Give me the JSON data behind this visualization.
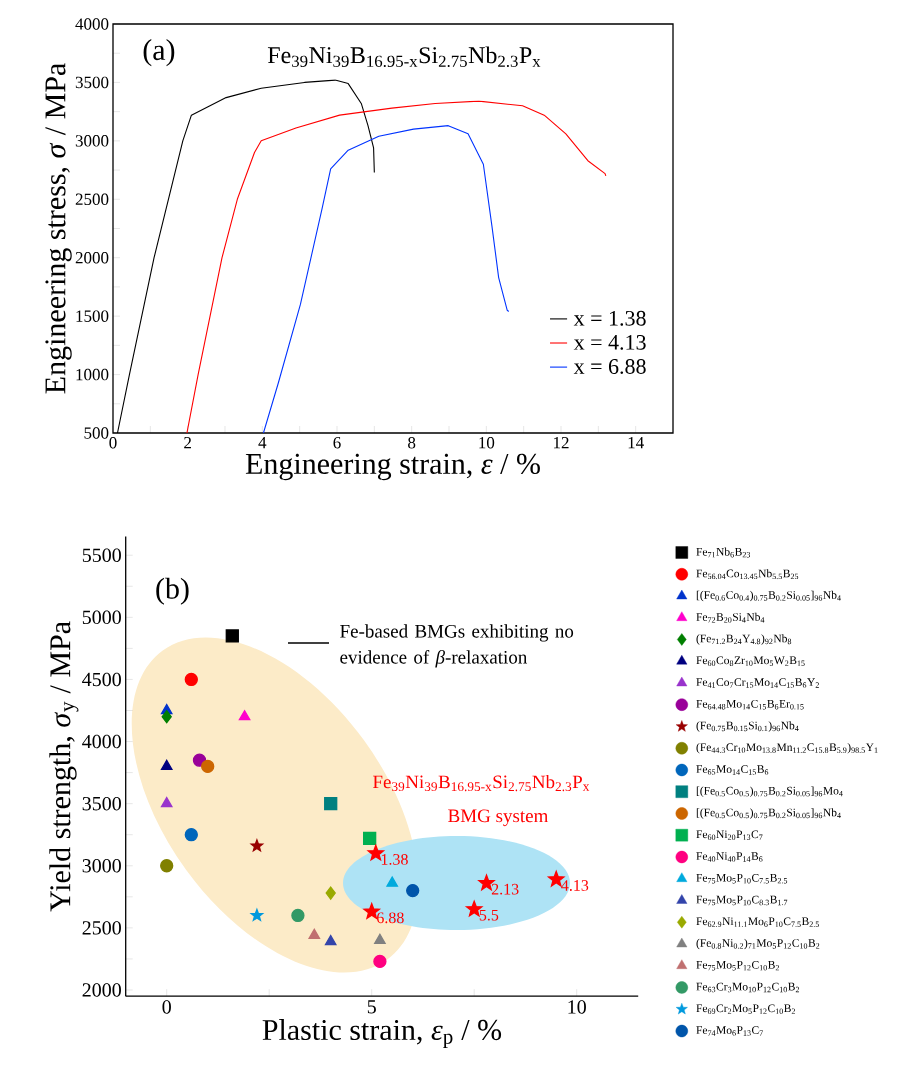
{
  "chart_data": [
    {
      "type": "line",
      "title": "Fe$_{39}$Ni$_{39}$B$_{16.95-x}$Si$_{2.75}$Nb$_{2.3}$P$_{x}$",
      "xlabel": "Engineering strain, *ε* / %",
      "ylabel": "Engineering stress, *σ* / MPa",
      "annotations": [
        "(a)"
      ],
      "xlim": [
        0,
        15
      ],
      "ylim": [
        500,
        4000
      ],
      "xticks": [
        0,
        {
          "value": 1,
          "label": null
        },
        2,
        {
          "value": 3,
          "label": null
        },
        4,
        {
          "value": 5,
          "label": null
        },
        6,
        {
          "value": 7,
          "label": null
        },
        8,
        {
          "value": 9,
          "label": null
        },
        10,
        {
          "value": 11,
          "label": null
        },
        12,
        {
          "value": 13,
          "label": null
        },
        14
      ],
      "yticks": [
        500,
        {
          "value": 750,
          "label": null
        },
        1000,
        {
          "value": 1250,
          "label": null
        },
        1500,
        {
          "value": 1750,
          "label": null
        },
        2000,
        {
          "value": 2250,
          "label": null
        },
        2500,
        {
          "value": 2750,
          "label": null
        },
        3000,
        {
          "value": 3250,
          "label": null
        },
        3500,
        {
          "value": 3750,
          "label": null
        },
        4000
      ],
      "legend": "bottom right",
      "marker": "none",
      "series": [
        {
          "name": "x = 1.38",
          "color": "#000000",
          "x": [
            0.12,
            0.44,
            1.1,
            1.87,
            2.1,
            3.03,
            3.97,
            5.13,
            5.95,
            6.3,
            6.65,
            6.83,
            6.98,
            7.0
          ],
          "values": [
            500,
            1000,
            2000,
            3000,
            3220,
            3370,
            3450,
            3500,
            3520,
            3490,
            3320,
            3130,
            2940,
            2730
          ]
        },
        {
          "name": "x = 4.13",
          "color": "#ff0000",
          "x": [
            1.98,
            2.28,
            2.92,
            3.33,
            3.79,
            3.97,
            4.9,
            6.07,
            7.47,
            8.63,
            9.8,
            10.97,
            11.55,
            12.13,
            12.72,
            13.18,
            13.2
          ],
          "values": [
            500,
            1000,
            2000,
            2500,
            2900,
            3000,
            3110,
            3220,
            3280,
            3320,
            3340,
            3300,
            3220,
            3060,
            2830,
            2720,
            2700
          ]
        },
        {
          "name": "x = 6.88",
          "color": "#0033ff",
          "x": [
            4.03,
            4.43,
            5.02,
            5.6,
            5.83,
            6.3,
            7.12,
            8.05,
            8.98,
            9.51,
            9.92,
            10.15,
            10.33,
            10.56,
            10.6
          ],
          "values": [
            500,
            930,
            1600,
            2420,
            2760,
            2920,
            3040,
            3100,
            3130,
            3060,
            2800,
            2270,
            1830,
            1550,
            1540
          ]
        }
      ]
    },
    {
      "type": "scatter",
      "xlabel": "Plastic strain, *ε*$_{p}$ / %",
      "ylabel": "Yield strength, *σ*$_{y}$ / MPa",
      "annotations": [
        "(b)",
        "Fe-based BMGs exhibiting no evidence of *β*-relaxation",
        "Fe$_{39}$Ni$_{39}$B$_{16.95-x}$Si$_{2.75}$Nb$_{2.3}$P$_{x}$",
        "BMG system",
        {
          "text": "1.38",
          "x": 5.1,
          "y": 3100
        },
        {
          "text": "2.13",
          "x": 7.8,
          "y": 2860
        },
        {
          "text": "4.13",
          "x": 9.5,
          "y": 2890
        },
        {
          "text": "5.5",
          "x": 7.5,
          "y": 2650
        },
        {
          "text": "6.88",
          "x": 5.0,
          "y": 2630
        }
      ],
      "xlim": [
        -1,
        11.5
      ],
      "ylim": [
        1950,
        5650
      ],
      "xticks": [
        0,
        {
          "value": 2.5,
          "label": null
        },
        5,
        {
          "value": 7.5,
          "label": null
        },
        10
      ],
      "yticks": [
        2000,
        {
          "value": 2250,
          "label": null
        },
        2500,
        {
          "value": 2750,
          "label": null
        },
        3000,
        {
          "value": 3250,
          "label": null
        },
        3500,
        {
          "value": 3750,
          "label": null
        },
        4000,
        {
          "value": 4250,
          "label": null
        },
        4500,
        {
          "value": 4750,
          "label": null
        },
        5000,
        {
          "value": 5250,
          "label": null
        },
        5500
      ],
      "legend": "right",
      "series": [
        {
          "name": "Fe$_{71}$Nb$_{6}$B$_{23}$",
          "color": "#000000",
          "marker": "square",
          "x": [
            1.6
          ],
          "values": [
            4850
          ]
        },
        {
          "name": "Fe$_{56.04}$Co$_{13.45}$Nb$_{5.5}$B$_{25}$",
          "color": "#ff0000",
          "marker": "circle",
          "x": [
            0.6
          ],
          "values": [
            4500
          ]
        },
        {
          "name": "[(Fe$_{0.6}$Co$_{0.4}$)$_{0.75}$B$_{0.2}$Si$_{0.05}$]$_{96}$Nb$_{4}$",
          "color": "#0033cc",
          "marker": "triangle",
          "x": [
            0
          ],
          "values": [
            4250
          ]
        },
        {
          "name": "Fe$_{72}$B$_{20}$Si$_{4}$Nb$_{4}$",
          "color": "#ff00cc",
          "marker": "triangle",
          "x": [
            1.9
          ],
          "values": [
            4200
          ]
        },
        {
          "name": "(Fe$_{71.2}$B$_{24}$Y$_{4.8}$)$_{92}$Nb$_{8}$",
          "color": "#007f00",
          "marker": "diamond",
          "x": [
            0
          ],
          "values": [
            4200
          ]
        },
        {
          "name": "Fe$_{60}$Co$_{8}$Zr$_{10}$Mo$_{5}$W$_{2}$B$_{15}$",
          "color": "#000080",
          "marker": "triangle",
          "x": [
            0
          ],
          "values": [
            3800
          ]
        },
        {
          "name": "Fe$_{41}$Co$_{7}$Cr$_{15}$Mo$_{14}$C$_{15}$B$_{6}$Y$_{2}$",
          "color": "#9933cc",
          "marker": "triangle",
          "x": [
            0
          ],
          "values": [
            3500
          ]
        },
        {
          "name": "Fe$_{64.48}$Mo$_{14}$C$_{15}$B$_{6}$Er$_{0.15}$",
          "color": "#990099",
          "marker": "circle",
          "x": [
            0.8
          ],
          "values": [
            3850
          ]
        },
        {
          "name": "(Fe$_{0.75}$B$_{0.15}$Si$_{0.1}$)$_{96}$Nb$_{4}$",
          "color": "#990000",
          "marker": "star",
          "x": [
            2.2
          ],
          "values": [
            3160
          ]
        },
        {
          "name": "(Fe$_{44.3}$Cr$_{10}$Mo$_{13.8}$Mn$_{11.2}$C$_{15.8}$B$_{5.9}$)$_{98.5}$Y$_{1}$",
          "color": "#808000",
          "marker": "circle",
          "x": [
            0
          ],
          "values": [
            3000
          ]
        },
        {
          "name": "Fe$_{65}$Mo$_{14}$C$_{15}$B$_{6}$",
          "color": "#0066bb",
          "marker": "circle",
          "x": [
            0.6
          ],
          "values": [
            3250
          ]
        },
        {
          "name": "[(Fe$_{0.5}$Co$_{0.5}$)$_{0.75}$B$_{0.2}$Si$_{0.05}$]$_{96}$Mo$_{4}$",
          "color": "#008080",
          "marker": "square",
          "x": [
            4.0
          ],
          "values": [
            3500
          ]
        },
        {
          "name": "[(Fe$_{0.5}$Co$_{0.5}$)$_{0.75}$B$_{0.2}$Si$_{0.05}$]$_{96}$Nb$_{4}$",
          "color": "#cc6600",
          "marker": "circle",
          "x": [
            1.0
          ],
          "values": [
            3800
          ]
        },
        {
          "name": "Fe$_{60}$Ni$_{20}$P$_{13}$C$_{7}$",
          "color": "#00b050",
          "marker": "square",
          "x": [
            4.95
          ],
          "values": [
            3220
          ]
        },
        {
          "name": "Fe$_{40}$Ni$_{40}$P$_{14}$B$_{6}$",
          "color": "#ff0080",
          "marker": "circle",
          "x": [
            5.2
          ],
          "values": [
            2230
          ]
        },
        {
          "name": "Fe$_{75}$Mo$_{5}$P$_{10}$C$_{7.5}$B$_{2.5}$",
          "color": "#00aadd",
          "marker": "triangle",
          "x": [
            5.5
          ],
          "values": [
            2860
          ]
        },
        {
          "name": "Fe$_{75}$Mo$_{5}$P$_{10}$C$_{8.3}$B$_{1.7}$",
          "color": "#3344aa",
          "marker": "triangle",
          "x": [
            4.0
          ],
          "values": [
            2390
          ]
        },
        {
          "name": "Fe$_{62.9}$Ni$_{11.1}$Mo$_{6}$P$_{10}$C$_{7.5}$B$_{2.5}$",
          "color": "#99aa00",
          "marker": "diamond",
          "x": [
            4.0
          ],
          "values": [
            2780
          ]
        },
        {
          "name": "(Fe$_{0.8}$Ni$_{0.2}$)$_{71}$Mo$_{5}$P$_{12}$C$_{10}$B$_{2}$",
          "color": "#808080",
          "marker": "triangle",
          "x": [
            5.2
          ],
          "values": [
            2400
          ]
        },
        {
          "name": "Fe$_{75}$Mo$_{5}$P$_{12}$C$_{10}$B$_{2}$",
          "color": "#c07070",
          "marker": "triangle",
          "x": [
            3.6
          ],
          "values": [
            2440
          ]
        },
        {
          "name": "Fe$_{63}$Cr$_{3}$Mo$_{10}$P$_{12}$C$_{10}$B$_{2}$",
          "color": "#339966",
          "marker": "circle",
          "x": [
            3.2
          ],
          "values": [
            2600
          ]
        },
        {
          "name": "Fe$_{69}$Cr$_{2}$Mo$_{5}$P$_{12}$C$_{10}$B$_{2}$",
          "color": "#0099dd",
          "marker": "star",
          "x": [
            2.2
          ],
          "values": [
            2600
          ]
        },
        {
          "name": "Fe$_{74}$Mo$_{6}$P$_{13}$C$_{7}$",
          "color": "#0055aa",
          "marker": "circle",
          "x": [
            6.0
          ],
          "values": [
            2800
          ]
        },
        {
          "color": "#ff0000",
          "marker": "star",
          "x": [
            5.1,
            7.8,
            9.5,
            7.5,
            5.0
          ],
          "values": [
            3100,
            2860,
            2890,
            2650,
            2630
          ]
        }
      ]
    }
  ]
}
